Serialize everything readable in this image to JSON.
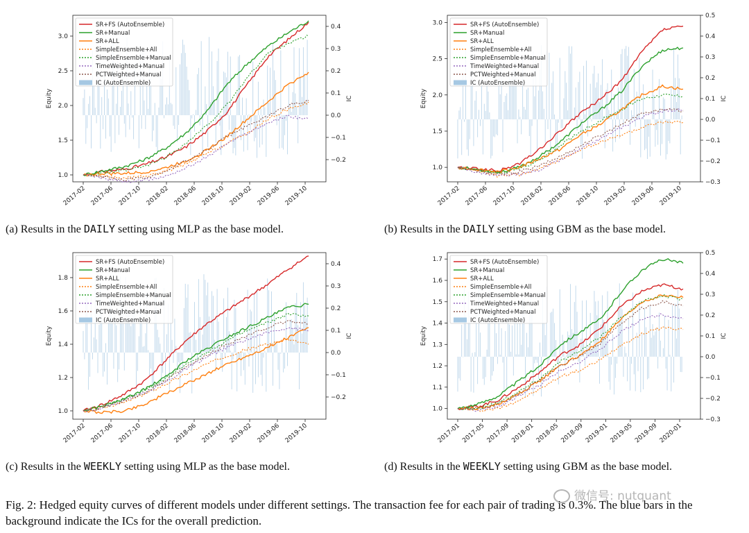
{
  "legend_labels": [
    "SR+FS (AutoEnsemble)",
    "SR+Manual",
    "SR+ALL",
    "SimpleEnsemble+All",
    "SimpleEnsemble+Manual",
    "TimeWeighted+Manual",
    "PCTWeighted+Manual",
    "IC (AutoEnsemble)"
  ],
  "series_colors": [
    "#d62728",
    "#2ca02c",
    "#ff7f0e",
    "#ff7f0e",
    "#2ca02c",
    "#9467bd",
    "#8c564b",
    "#a6c8e3"
  ],
  "left_axis_label": "Equity",
  "right_axis_label": "IC",
  "figure_caption": "Fig. 2: Hedged equity curves of different models under different settings. The transaction fee for each pair of trading is 0.3%. The blue bars in the background indicate the ICs for the overall prediction.",
  "watermark": "微信号: nutquant",
  "chart_data": [
    {
      "type": "line",
      "id": "a",
      "caption": {
        "prefix": "(a) Results in the",
        "setting": "DAILY",
        "suffix": "setting using MLP as the base model."
      },
      "xticks": [
        "2017-02",
        "2017-06",
        "2017-10",
        "2018-02",
        "2018-06",
        "2018-10",
        "2019-02",
        "2019-06",
        "2019-10"
      ],
      "ylim": [
        0.9,
        3.3
      ],
      "yticks": [
        "1.0",
        "1.5",
        "2.0",
        "2.5",
        "3.0"
      ],
      "ic_lim": [
        -0.3,
        0.45
      ],
      "ic_ticks": [
        "−0.2",
        "−0.1",
        "0.0",
        "0.1",
        "0.2",
        "0.3",
        "0.4"
      ],
      "series": [
        {
          "name": "SR+FS (AutoEnsemble)",
          "values": [
            1.0,
            1.05,
            1.08,
            1.15,
            1.25,
            1.4,
            1.62,
            1.9,
            2.3,
            2.7,
            2.95,
            3.2
          ]
        },
        {
          "name": "SR+Manual",
          "values": [
            1.0,
            1.06,
            1.12,
            1.22,
            1.38,
            1.6,
            1.9,
            2.3,
            2.6,
            2.85,
            3.05,
            3.22
          ]
        },
        {
          "name": "SR+ALL",
          "values": [
            1.0,
            1.02,
            1.02,
            1.04,
            1.1,
            1.2,
            1.35,
            1.55,
            1.8,
            2.05,
            2.3,
            2.48
          ]
        },
        {
          "name": "SimpleEnsemble+All",
          "values": [
            1.0,
            0.98,
            0.95,
            0.98,
            1.05,
            1.15,
            1.3,
            1.45,
            1.6,
            1.8,
            1.95,
            2.05
          ]
        },
        {
          "name": "SimpleEnsemble+Manual",
          "values": [
            1.0,
            1.03,
            1.06,
            1.12,
            1.25,
            1.45,
            1.7,
            2.0,
            2.4,
            2.75,
            2.9,
            3.0
          ]
        },
        {
          "name": "TimeWeighted+Manual",
          "values": [
            1.0,
            0.95,
            0.9,
            0.92,
            0.98,
            1.1,
            1.25,
            1.45,
            1.6,
            1.75,
            1.85,
            1.8
          ]
        },
        {
          "name": "PCTWeighted+Manual",
          "values": [
            1.0,
            0.97,
            0.93,
            0.96,
            1.05,
            1.2,
            1.35,
            1.55,
            1.7,
            1.85,
            2.0,
            2.07
          ]
        }
      ]
    },
    {
      "type": "line",
      "id": "b",
      "caption": {
        "prefix": "(b) Results in the",
        "setting": "DAILY",
        "suffix": "setting using GBM as the base model."
      },
      "xticks": [
        "2017-02",
        "2017-06",
        "2017-10",
        "2018-02",
        "2018-06",
        "2018-10",
        "2019-02",
        "2019-06",
        "2019-10"
      ],
      "ylim": [
        0.8,
        3.1
      ],
      "yticks": [
        "1.0",
        "1.5",
        "2.0",
        "2.5",
        "3.0"
      ],
      "ic_lim": [
        -0.3,
        0.5
      ],
      "ic_ticks": [
        "−0.3",
        "−0.2",
        "−0.1",
        "0.0",
        "0.1",
        "0.2",
        "0.3",
        "0.4",
        "0.5"
      ],
      "series": [
        {
          "name": "SR+FS (AutoEnsemble)",
          "values": [
            1.0,
            0.98,
            0.95,
            1.05,
            1.25,
            1.5,
            1.75,
            1.95,
            2.2,
            2.6,
            2.9,
            2.95
          ]
        },
        {
          "name": "SR+Manual",
          "values": [
            1.0,
            0.97,
            0.93,
            1.0,
            1.15,
            1.35,
            1.6,
            1.8,
            2.05,
            2.4,
            2.62,
            2.65
          ]
        },
        {
          "name": "SR+ALL",
          "values": [
            1.0,
            0.97,
            0.94,
            1.0,
            1.12,
            1.25,
            1.45,
            1.6,
            1.8,
            2.0,
            2.12,
            2.08
          ]
        },
        {
          "name": "SimpleEnsemble+All",
          "values": [
            1.0,
            0.95,
            0.88,
            0.9,
            0.98,
            1.1,
            1.25,
            1.35,
            1.45,
            1.55,
            1.62,
            1.62
          ]
        },
        {
          "name": "SimpleEnsemble+Manual",
          "values": [
            1.0,
            0.96,
            0.92,
            0.98,
            1.1,
            1.3,
            1.5,
            1.65,
            1.8,
            1.95,
            2.0,
            1.98
          ]
        },
        {
          "name": "TimeWeighted+Manual",
          "values": [
            1.0,
            0.93,
            0.88,
            0.9,
            0.97,
            1.1,
            1.25,
            1.4,
            1.55,
            1.7,
            1.78,
            1.8
          ]
        },
        {
          "name": "PCTWeighted+Manual",
          "values": [
            1.0,
            0.95,
            0.9,
            0.94,
            1.02,
            1.15,
            1.3,
            1.45,
            1.6,
            1.75,
            1.8,
            1.78
          ]
        }
      ]
    },
    {
      "type": "line",
      "id": "c",
      "caption": {
        "prefix": "(c) Results in the",
        "setting": "WEEKLY",
        "suffix": "setting using MLP as the base model."
      },
      "xticks": [
        "2017-02",
        "2017-06",
        "2017-10",
        "2018-02",
        "2018-06",
        "2018-10",
        "2019-02",
        "2019-06",
        "2019-10"
      ],
      "ylim": [
        0.95,
        1.95
      ],
      "yticks": [
        "1.0",
        "1.2",
        "1.4",
        "1.6",
        "1.8"
      ],
      "ic_lim": [
        -0.3,
        0.45
      ],
      "ic_ticks": [
        "−0.2",
        "−0.1",
        "0.0",
        "0.1",
        "0.2",
        "0.3",
        "0.4"
      ],
      "series": [
        {
          "name": "SR+FS (AutoEnsemble)",
          "values": [
            1.0,
            1.04,
            1.1,
            1.18,
            1.3,
            1.42,
            1.52,
            1.6,
            1.68,
            1.76,
            1.85,
            1.93
          ]
        },
        {
          "name": "SR+Manual",
          "values": [
            1.0,
            1.03,
            1.07,
            1.13,
            1.2,
            1.3,
            1.37,
            1.44,
            1.5,
            1.56,
            1.62,
            1.64
          ]
        },
        {
          "name": "SR+ALL",
          "values": [
            1.0,
            0.99,
            1.0,
            1.04,
            1.1,
            1.16,
            1.22,
            1.28,
            1.33,
            1.38,
            1.44,
            1.5
          ]
        },
        {
          "name": "SimpleEnsemble+All",
          "values": [
            1.0,
            1.02,
            1.05,
            1.1,
            1.16,
            1.22,
            1.28,
            1.33,
            1.37,
            1.4,
            1.43,
            1.4
          ]
        },
        {
          "name": "SimpleEnsemble+Manual",
          "values": [
            1.0,
            1.03,
            1.07,
            1.12,
            1.19,
            1.28,
            1.35,
            1.42,
            1.48,
            1.53,
            1.58,
            1.57
          ]
        },
        {
          "name": "TimeWeighted+Manual",
          "values": [
            1.0,
            1.02,
            1.06,
            1.11,
            1.17,
            1.25,
            1.32,
            1.38,
            1.43,
            1.47,
            1.5,
            1.48
          ]
        },
        {
          "name": "PCTWeighted+Manual",
          "values": [
            1.0,
            1.02,
            1.06,
            1.11,
            1.18,
            1.26,
            1.33,
            1.4,
            1.45,
            1.5,
            1.54,
            1.52
          ]
        }
      ]
    },
    {
      "type": "line",
      "id": "d",
      "caption": {
        "prefix": "(d) Results in the",
        "setting": "WEEKLY",
        "suffix": "setting using GBM as the base model."
      },
      "xticks": [
        "2017-01",
        "2017-05",
        "2017-09",
        "2018-01",
        "2018-05",
        "2018-09",
        "2019-01",
        "2019-05",
        "2019-09",
        "2020-01"
      ],
      "ylim": [
        0.95,
        1.73
      ],
      "yticks": [
        "1.0",
        "1.1",
        "1.2",
        "1.3",
        "1.4",
        "1.5",
        "1.6",
        "1.7"
      ],
      "ic_lim": [
        -0.3,
        0.5
      ],
      "ic_ticks": [
        "−0.3",
        "−0.2",
        "−0.1",
        "0.0",
        "0.1",
        "0.2",
        "0.3",
        "0.4",
        "0.5"
      ],
      "series": [
        {
          "name": "SR+FS (AutoEnsemble)",
          "values": [
            1.0,
            1.01,
            1.04,
            1.1,
            1.17,
            1.25,
            1.3,
            1.38,
            1.48,
            1.55,
            1.58,
            1.56
          ]
        },
        {
          "name": "SR+Manual",
          "values": [
            1.0,
            1.02,
            1.06,
            1.13,
            1.2,
            1.3,
            1.36,
            1.42,
            1.55,
            1.65,
            1.7,
            1.68
          ]
        },
        {
          "name": "SR+ALL",
          "values": [
            1.0,
            1.0,
            1.02,
            1.07,
            1.13,
            1.2,
            1.25,
            1.32,
            1.42,
            1.5,
            1.53,
            1.52
          ]
        },
        {
          "name": "SimpleEnsemble+All",
          "values": [
            1.0,
            0.99,
            1.0,
            1.04,
            1.09,
            1.15,
            1.18,
            1.23,
            1.3,
            1.35,
            1.38,
            1.37
          ]
        },
        {
          "name": "SimpleEnsemble+Manual",
          "values": [
            1.0,
            1.0,
            1.03,
            1.08,
            1.14,
            1.22,
            1.27,
            1.34,
            1.43,
            1.5,
            1.53,
            1.51
          ]
        },
        {
          "name": "TimeWeighted+Manual",
          "values": [
            1.0,
            0.99,
            1.01,
            1.06,
            1.11,
            1.18,
            1.22,
            1.28,
            1.36,
            1.42,
            1.44,
            1.42
          ]
        },
        {
          "name": "PCTWeighted+Manual",
          "values": [
            1.0,
            1.0,
            1.02,
            1.07,
            1.13,
            1.2,
            1.25,
            1.31,
            1.4,
            1.47,
            1.5,
            1.48
          ]
        }
      ]
    }
  ]
}
